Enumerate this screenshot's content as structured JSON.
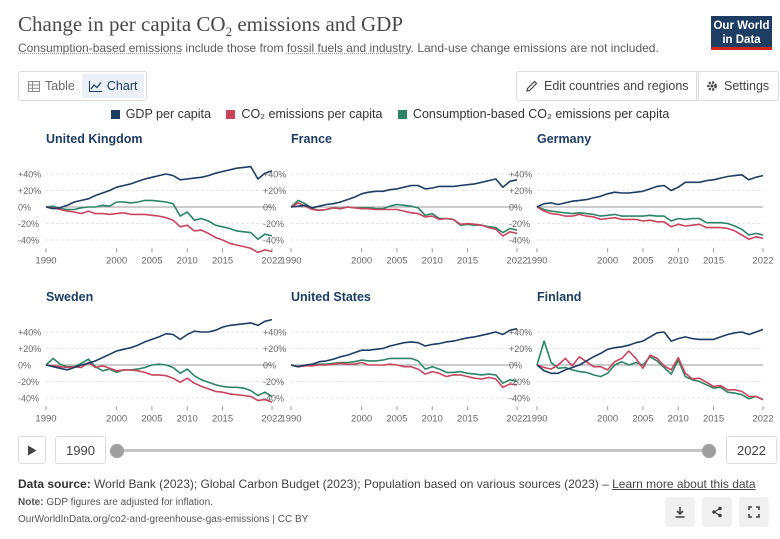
{
  "header": {
    "title_main": "Change in per capita CO",
    "title_sub": "2",
    "title_end": " emissions and GDP",
    "subtitle_link1": "Consumption-based emissions",
    "subtitle_mid": " include those from ",
    "subtitle_link2": "fossil fuels and industry",
    "subtitle_end": ". Land-use change emissions are not included.",
    "logo_line1": "Our World",
    "logo_line2": "in Data"
  },
  "toolbar": {
    "tab_table": "Table",
    "tab_chart": "Chart",
    "edit_button": "Edit countries and regions",
    "settings_button": "Settings"
  },
  "legend": {
    "items": [
      {
        "label": "GDP per capita",
        "color": "#1d3d63"
      },
      {
        "label": "CO₂ emissions per capita",
        "color": "#c8455d"
      },
      {
        "label": "Consumption-based CO₂ emissions per capita",
        "color": "#2c8465"
      }
    ]
  },
  "timeline": {
    "start_year": "1990",
    "end_year": "2022"
  },
  "footer": {
    "source_label": "Data source:",
    "source_text": " World Bank (2023); Global Carbon Budget (2023); Population based on various sources (2023) – ",
    "source_link": "Learn more about this data",
    "note_label": "Note:",
    "note_text": " GDP figures are adjusted for inflation.",
    "url": "OurWorldInData.org/co2-and-greenhouse-gas-emissions | CC BY"
  },
  "chart_data": {
    "type": "line",
    "x": [
      1990,
      1991,
      1992,
      1993,
      1994,
      1995,
      1996,
      1997,
      1998,
      1999,
      2000,
      2001,
      2002,
      2003,
      2004,
      2005,
      2006,
      2007,
      2008,
      2009,
      2010,
      2011,
      2012,
      2013,
      2014,
      2015,
      2016,
      2017,
      2018,
      2019,
      2020,
      2021,
      2022
    ],
    "xticks": [
      "1990",
      "2000",
      "2005",
      "2010",
      "2015",
      "2022"
    ],
    "yticks": [
      "+40%",
      "+20%",
      "0%",
      "-20%",
      "-40%"
    ],
    "ylim": [
      -50,
      60
    ],
    "grid": true,
    "legend_position": "top",
    "series_colors": [
      "#1d3d63",
      "#c8455d",
      "#2c8465"
    ],
    "panels": [
      {
        "title": "United Kingdom",
        "series": [
          {
            "name": "GDP per capita",
            "values": [
              0,
              -2,
              -1,
              2,
              6,
              8,
              10,
              14,
              17,
              20,
              24,
              26,
              28,
              31,
              34,
              36,
              38,
              40,
              38,
              33,
              34,
              35,
              36,
              38,
              41,
              43,
              45,
              47,
              48,
              49,
              34,
              41,
              44
            ]
          },
          {
            "name": "CO₂ emissions per capita",
            "values": [
              0,
              -1,
              -3,
              -5,
              -6,
              -8,
              -5,
              -8,
              -8,
              -9,
              -8,
              -7,
              -9,
              -9,
              -9,
              -10,
              -11,
              -13,
              -16,
              -24,
              -22,
              -29,
              -28,
              -32,
              -37,
              -40,
              -44,
              -46,
              -48,
              -50,
              -55,
              -52,
              -54
            ]
          },
          {
            "name": "Consumption-based CO₂ emissions per capita",
            "values": [
              0,
              1,
              -2,
              -3,
              -3,
              -1,
              0,
              0,
              2,
              1,
              6,
              6,
              5,
              6,
              8,
              8,
              7,
              6,
              4,
              -11,
              -6,
              -16,
              -14,
              -17,
              -22,
              -24,
              -26,
              -29,
              -30,
              -31,
              -39,
              -33,
              -35
            ]
          }
        ]
      },
      {
        "title": "France",
        "series": [
          {
            "name": "GDP per capita",
            "values": [
              0,
              1,
              2,
              -1,
              1,
              3,
              4,
              6,
              9,
              12,
              16,
              18,
              19,
              19,
              21,
              22,
              24,
              26,
              26,
              22,
              23,
              25,
              25,
              25,
              26,
              27,
              28,
              30,
              32,
              34,
              24,
              31,
              33
            ]
          },
          {
            "name": "CO₂ emissions per capita",
            "values": [
              0,
              5,
              1,
              -3,
              -4,
              -3,
              -1,
              -2,
              0,
              -1,
              -2,
              -2,
              -3,
              -3,
              -3,
              -3,
              -5,
              -7,
              -8,
              -12,
              -11,
              -15,
              -14,
              -15,
              -21,
              -20,
              -21,
              -22,
              -25,
              -27,
              -35,
              -30,
              -32
            ]
          },
          {
            "name": "Consumption-based CO₂ emissions per capita",
            "values": [
              0,
              8,
              4,
              -2,
              -4,
              -3,
              -1,
              -2,
              0,
              -1,
              -1,
              -1,
              -2,
              -2,
              1,
              3,
              2,
              1,
              -1,
              -10,
              -8,
              -14,
              -14,
              -15,
              -22,
              -21,
              -22,
              -22,
              -24,
              -25,
              -31,
              -26,
              -28
            ]
          }
        ]
      },
      {
        "title": "Germany",
        "series": [
          {
            "name": "GDP per capita",
            "values": [
              0,
              4,
              5,
              3,
              5,
              7,
              8,
              9,
              11,
              13,
              16,
              18,
              17,
              17,
              18,
              19,
              22,
              25,
              26,
              20,
              24,
              30,
              30,
              30,
              32,
              33,
              35,
              37,
              38,
              39,
              33,
              36,
              38
            ]
          },
          {
            "name": "CO₂ emissions per capita",
            "values": [
              0,
              -5,
              -8,
              -9,
              -11,
              -11,
              -9,
              -11,
              -12,
              -15,
              -14,
              -13,
              -15,
              -15,
              -15,
              -17,
              -16,
              -18,
              -18,
              -24,
              -21,
              -23,
              -22,
              -21,
              -25,
              -25,
              -25,
              -26,
              -29,
              -34,
              -39,
              -36,
              -38
            ]
          },
          {
            "name": "Consumption-based CO₂ emissions per capita",
            "values": [
              0,
              -3,
              -5,
              -6,
              -7,
              -8,
              -7,
              -8,
              -9,
              -11,
              -10,
              -9,
              -11,
              -11,
              -11,
              -11,
              -10,
              -11,
              -11,
              -17,
              -14,
              -15,
              -14,
              -14,
              -19,
              -19,
              -19,
              -20,
              -23,
              -27,
              -34,
              -32,
              -34
            ]
          }
        ]
      },
      {
        "title": "Sweden",
        "series": [
          {
            "name": "GDP per capita",
            "values": [
              0,
              -2,
              -4,
              -6,
              -3,
              0,
              2,
              5,
              9,
              13,
              17,
              19,
              21,
              24,
              28,
              31,
              34,
              38,
              37,
              31,
              37,
              41,
              40,
              40,
              42,
              46,
              48,
              49,
              50,
              51,
              48,
              53,
              55
            ]
          },
          {
            "name": "CO₂ emissions per capita",
            "values": [
              0,
              -1,
              -2,
              -3,
              -2,
              -3,
              3,
              -3,
              -1,
              -4,
              -7,
              -6,
              -6,
              -7,
              -9,
              -12,
              -12,
              -13,
              -16,
              -21,
              -16,
              -22,
              -26,
              -29,
              -32,
              -33,
              -35,
              -36,
              -37,
              -38,
              -43,
              -42,
              -45
            ]
          },
          {
            "name": "Consumption-based CO₂ emissions per capita",
            "values": [
              0,
              8,
              1,
              -2,
              -2,
              2,
              7,
              -2,
              -7,
              -5,
              -9,
              -6,
              -6,
              -5,
              -3,
              0,
              1,
              0,
              -3,
              -10,
              -5,
              -13,
              -18,
              -21,
              -24,
              -26,
              -27,
              -27,
              -28,
              -31,
              -37,
              -33,
              -38
            ]
          }
        ]
      },
      {
        "title": "United States",
        "series": [
          {
            "name": "GDP per capita",
            "values": [
              0,
              -2,
              0,
              1,
              4,
              5,
              7,
              10,
              12,
              15,
              18,
              18,
              19,
              20,
              23,
              25,
              27,
              28,
              27,
              23,
              25,
              26,
              28,
              29,
              31,
              33,
              34,
              36,
              38,
              40,
              37,
              42,
              44
            ]
          },
          {
            "name": "CO₂ emissions per capita",
            "values": [
              0,
              -2,
              -1,
              -1,
              0,
              0,
              1,
              2,
              1,
              1,
              3,
              0,
              0,
              0,
              1,
              0,
              -2,
              -2,
              -5,
              -11,
              -8,
              -10,
              -14,
              -12,
              -12,
              -14,
              -16,
              -17,
              -15,
              -17,
              -27,
              -23,
              -24
            ]
          },
          {
            "name": "Consumption-based CO₂ emissions per capita",
            "values": [
              0,
              -2,
              -1,
              0,
              1,
              1,
              2,
              3,
              3,
              4,
              6,
              5,
              5,
              6,
              8,
              8,
              8,
              8,
              5,
              -5,
              -2,
              -5,
              -9,
              -9,
              -8,
              -10,
              -11,
              -12,
              -11,
              -12,
              -22,
              -18,
              -20
            ]
          }
        ]
      },
      {
        "title": "Finland",
        "series": [
          {
            "name": "GDP per capita",
            "values": [
              0,
              -7,
              -10,
              -10,
              -6,
              -3,
              0,
              5,
              10,
              14,
              19,
              21,
              22,
              24,
              27,
              29,
              34,
              39,
              40,
              29,
              32,
              34,
              32,
              31,
              31,
              31,
              34,
              37,
              39,
              40,
              37,
              40,
              43
            ]
          },
          {
            "name": "CO₂ emissions per capita",
            "values": [
              0,
              -3,
              -5,
              0,
              8,
              -1,
              10,
              4,
              -2,
              -2,
              -6,
              4,
              8,
              17,
              8,
              -4,
              12,
              8,
              -1,
              -6,
              9,
              -10,
              -17,
              -16,
              -21,
              -26,
              -25,
              -30,
              -30,
              -32,
              -38,
              -38,
              -42
            ]
          },
          {
            "name": "Consumption-based CO₂ emissions per capita",
            "values": [
              0,
              29,
              3,
              -4,
              -3,
              -6,
              -8,
              -9,
              -12,
              -14,
              -10,
              0,
              4,
              0,
              3,
              0,
              10,
              5,
              -3,
              -11,
              6,
              -14,
              -18,
              -20,
              -24,
              -28,
              -27,
              -33,
              -34,
              -36,
              -41,
              -38,
              -42
            ]
          }
        ]
      }
    ]
  }
}
